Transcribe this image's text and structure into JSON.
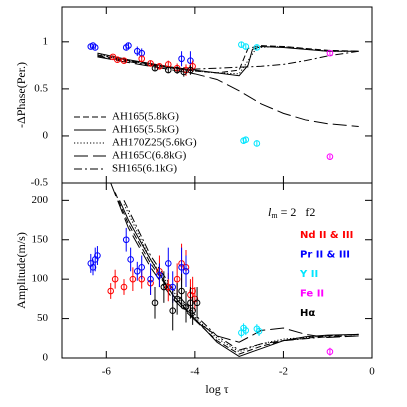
{
  "chart_data": [
    {
      "type": "line",
      "ylabel": "-ΔPhase(Per.)",
      "ylim": [
        -0.5,
        1.37
      ],
      "yticks": [
        -0.5,
        0,
        0.5,
        1
      ],
      "legend": "lower-left",
      "series": [
        {
          "name": "AH165(5.8kG)",
          "kind": "line",
          "dash": "dashed",
          "color": "#000000",
          "x": [
            -6.2,
            -5.5,
            -5,
            -4.5,
            -4,
            -3.5,
            -3,
            -2.8,
            -2.5,
            -2,
            -1,
            -0.3
          ],
          "values": [
            0.86,
            0.8,
            0.76,
            0.72,
            0.69,
            0.67,
            0.7,
            0.93,
            0.96,
            0.95,
            0.91,
            0.9
          ]
        },
        {
          "name": "AH165(5.5kG)",
          "kind": "line",
          "dash": "solid",
          "color": "#000000",
          "x": [
            -6.2,
            -5.5,
            -5,
            -4.5,
            -4,
            -3.5,
            -3,
            -2.8,
            -2.7,
            -2.5,
            -2,
            -1,
            -0.3
          ],
          "values": [
            0.88,
            0.81,
            0.77,
            0.73,
            0.7,
            0.67,
            0.64,
            0.75,
            0.92,
            0.95,
            0.94,
            0.9,
            0.9
          ]
        },
        {
          "name": "AH170Z25(5.6kG)",
          "kind": "line",
          "dash": "dotted",
          "color": "#000000",
          "x": [
            -6.2,
            -5.5,
            -5,
            -4.5,
            -4,
            -3.5,
            -3,
            -2.8,
            -2.6,
            -2,
            -1,
            -0.3
          ],
          "values": [
            0.87,
            0.8,
            0.76,
            0.72,
            0.69,
            0.67,
            0.66,
            0.8,
            0.94,
            0.95,
            0.9,
            0.9
          ]
        },
        {
          "name": "AH165C(6.8kG)",
          "kind": "line",
          "dash": "longdash",
          "color": "#000000",
          "x": [
            -6.2,
            -5.5,
            -5,
            -4.5,
            -4,
            -3.5,
            -3,
            -2.5,
            -2,
            -1.5,
            -1,
            -0.3
          ],
          "values": [
            0.84,
            0.78,
            0.74,
            0.7,
            0.66,
            0.6,
            0.48,
            0.34,
            0.24,
            0.17,
            0.13,
            0.1
          ]
        },
        {
          "name": "SH165(6.1kG)",
          "kind": "line",
          "dash": "dashdot",
          "color": "#000000",
          "x": [
            -6.2,
            -5.5,
            -5,
            -4.5,
            -4,
            -3.5,
            -3,
            -2.5,
            -2,
            -1.5,
            -1,
            -0.3
          ],
          "values": [
            0.85,
            0.79,
            0.75,
            0.72,
            0.71,
            0.72,
            0.73,
            0.74,
            0.76,
            0.8,
            0.85,
            0.9
          ]
        },
        {
          "kind": "points",
          "color": "#0000ff",
          "x": [
            -6.35,
            -6.3,
            -6.25,
            -5.55,
            -5.5,
            -5.3,
            -5.2,
            -4.3,
            -4.1
          ],
          "values": [
            0.95,
            0.96,
            0.94,
            0.94,
            0.96,
            0.9,
            0.88,
            0.82,
            0.8
          ],
          "errors": [
            0.02,
            0.02,
            0.02,
            0.03,
            0.03,
            0.05,
            0.05,
            0.08,
            0.1
          ]
        },
        {
          "kind": "points",
          "color": "#ff0000",
          "x": [
            -5.85,
            -5.75,
            -5.6,
            -5.2,
            -5.0,
            -4.8,
            -4.6,
            -4.4,
            -4.2,
            -4.05
          ],
          "values": [
            0.84,
            0.81,
            0.8,
            0.82,
            0.77,
            0.74,
            0.76,
            0.72,
            0.7,
            0.74
          ],
          "errors": [
            0.02,
            0.02,
            0.02,
            0.03,
            0.03,
            0.03,
            0.04,
            0.05,
            0.06,
            0.06
          ]
        },
        {
          "kind": "points",
          "color": "#000000",
          "x": [
            -4.9,
            -4.6,
            -4.4,
            -4.25,
            -4.1
          ],
          "values": [
            0.72,
            0.7,
            0.7,
            0.68,
            0.7
          ],
          "errors": [
            0.03,
            0.03,
            0.04,
            0.05,
            0.05
          ]
        },
        {
          "kind": "points",
          "color": "#00e5ff",
          "x": [
            -2.95,
            -2.85,
            -2.6,
            -2.9,
            -2.85,
            -2.6
          ],
          "values": [
            0.97,
            0.95,
            0.94,
            -0.05,
            -0.04,
            -0.08
          ],
          "errors": [
            0.03,
            0.03,
            0.03,
            0.03,
            0.03,
            0.03
          ]
        },
        {
          "kind": "points",
          "color": "#ff00ff",
          "x": [
            -0.95,
            -0.95
          ],
          "values": [
            0.88,
            -0.22
          ],
          "errors": [
            0.02,
            0.02
          ]
        }
      ]
    },
    {
      "type": "line",
      "xlabel": "log τ",
      "ylabel": "Amplitude(m/s)",
      "xlim": [
        -7,
        0
      ],
      "xticks": [
        -6,
        -4,
        -2,
        0
      ],
      "ylim": [
        0,
        222
      ],
      "yticks": [
        0,
        50,
        100,
        150,
        200
      ],
      "legend": "upper-right",
      "annotation": {
        "symbol": "l",
        "subscript": "m",
        "text": "= 2   f2"
      },
      "series": [
        {
          "kind": "line",
          "dash": "dashed",
          "color": "#000000",
          "x": [
            -5.8,
            -5.5,
            -5,
            -4.5,
            -4,
            -3.5,
            -3,
            -2.5,
            -2,
            -1,
            -0.3
          ],
          "values": [
            210,
            170,
            120,
            80,
            48,
            22,
            5,
            15,
            22,
            28,
            30
          ]
        },
        {
          "kind": "line",
          "dash": "solid",
          "color": "#000000",
          "x": [
            -5.7,
            -5.5,
            -5,
            -4.5,
            -4,
            -3.5,
            -3,
            -2.5,
            -2,
            -1.5,
            -1,
            -0.3
          ],
          "values": [
            200,
            175,
            125,
            80,
            50,
            20,
            2,
            12,
            22,
            27,
            29,
            30
          ]
        },
        {
          "kind": "line",
          "dash": "dotted",
          "color": "#000000",
          "x": [
            -5.6,
            -5,
            -4.5,
            -4,
            -3.5,
            -3,
            -2.5,
            -2,
            -1,
            -0.3
          ],
          "values": [
            195,
            125,
            85,
            52,
            25,
            8,
            18,
            24,
            28,
            30
          ]
        },
        {
          "kind": "line",
          "dash": "longdash",
          "color": "#000000",
          "x": [
            -5.9,
            -5.5,
            -5,
            -4.5,
            -4,
            -3.5,
            -3,
            -2.5,
            -2,
            -1.5,
            -1,
            -0.3
          ],
          "values": [
            222,
            165,
            115,
            75,
            48,
            28,
            20,
            35,
            38,
            30,
            26,
            28
          ]
        },
        {
          "kind": "line",
          "dash": "dashdot",
          "color": "#000000",
          "x": [
            -5.6,
            -5,
            -4.5,
            -4,
            -3.5,
            -3,
            -2.5,
            -2,
            -1,
            -0.3
          ],
          "values": [
            200,
            130,
            88,
            55,
            28,
            10,
            18,
            22,
            27,
            28
          ]
        },
        {
          "name": "Nd II & III",
          "kind": "points",
          "color": "#ff0000",
          "x": [
            -5.9,
            -5.8,
            -5.6,
            -5.4,
            -5.2,
            -5.0,
            -4.8,
            -4.6,
            -4.4,
            -4.3,
            -4.2,
            -4.1,
            -4.05,
            -4.0
          ],
          "values": [
            85,
            100,
            90,
            100,
            100,
            95,
            110,
            90,
            100,
            120,
            115,
            80,
            85,
            75
          ],
          "errors": [
            10,
            12,
            10,
            15,
            12,
            15,
            20,
            18,
            20,
            25,
            22,
            20,
            18,
            15
          ]
        },
        {
          "name": "Pr II & III",
          "kind": "points",
          "color": "#0000ff",
          "x": [
            -6.35,
            -6.3,
            -6.25,
            -6.2,
            -5.55,
            -5.45,
            -5.3,
            -5.2,
            -5.0,
            -4.8,
            -4.6,
            -4.5,
            -4.3,
            -4.2
          ],
          "values": [
            120,
            115,
            125,
            130,
            150,
            125,
            110,
            115,
            100,
            105,
            120,
            90,
            115,
            110
          ],
          "errors": [
            12,
            10,
            15,
            12,
            15,
            15,
            12,
            15,
            20,
            15,
            20,
            20,
            25,
            20
          ]
        },
        {
          "name": "Y II",
          "kind": "points",
          "color": "#00e5ff",
          "x": [
            -2.95,
            -2.9,
            -2.85,
            -2.6,
            -2.55
          ],
          "values": [
            32,
            38,
            35,
            37,
            34
          ],
          "errors": [
            6,
            6,
            6,
            6,
            6
          ]
        },
        {
          "name": "Fe II",
          "kind": "points",
          "color": "#ff00ff",
          "x": [
            -0.95
          ],
          "values": [
            8
          ],
          "errors": [
            5
          ]
        },
        {
          "name": "Hα",
          "kind": "points",
          "color": "#000000",
          "x": [
            -4.9,
            -4.7,
            -4.5,
            -4.4,
            -4.3,
            -4.2,
            -4.1,
            -4.05,
            -3.95
          ],
          "values": [
            70,
            90,
            60,
            75,
            85,
            65,
            70,
            60,
            70
          ],
          "errors": [
            20,
            20,
            25,
            20,
            22,
            20,
            20,
            18,
            20
          ]
        }
      ]
    }
  ]
}
